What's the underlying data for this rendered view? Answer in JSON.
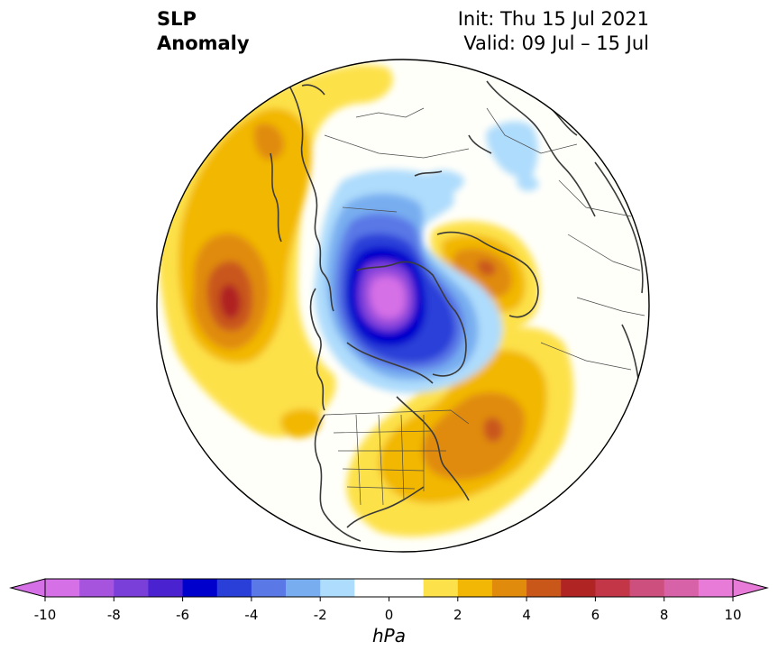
{
  "title": {
    "line1": "SLP",
    "line2": "Anomaly"
  },
  "info": {
    "init": "Init: Thu 15 Jul 2021",
    "valid": "Valid: 09 Jul – 15 Jul"
  },
  "colorbar": {
    "unit": "hPa",
    "ticks": [
      "-10",
      "-8",
      "-6",
      "-4",
      "-2",
      "0",
      "2",
      "4",
      "6",
      "8",
      "10"
    ],
    "colors": [
      "#d670e6",
      "#a653de",
      "#7a3ed9",
      "#4a22d0",
      "#0000cc",
      "#2a3fd8",
      "#5a78e6",
      "#78aef0",
      "#aedcfc",
      "#ffffff",
      "#ffffff",
      "#fde14a",
      "#f2b705",
      "#e08b0c",
      "#c9571a",
      "#b02424",
      "#c23648",
      "#cc4f7e",
      "#d862a8",
      "#e87bd8"
    ],
    "over_color": "#e87bd8",
    "under_color": "#d670e6"
  },
  "map": {
    "variable": "SLP Anomaly",
    "projection": "north-polar-stereographic",
    "field_colors": {
      "neg4": "#0000cc",
      "neg3": "#2a3fd8",
      "neg2": "#5a78e6",
      "neg1": "#78aef0",
      "neg0": "#aedcfc",
      "pos0": "#fde14a",
      "pos1": "#f2b705",
      "pos2": "#e08b0c",
      "pos3": "#c9571a",
      "pos4": "#b02424",
      "min": "#d670e6",
      "min2": "#a653de",
      "min3": "#7a3ed9"
    }
  }
}
